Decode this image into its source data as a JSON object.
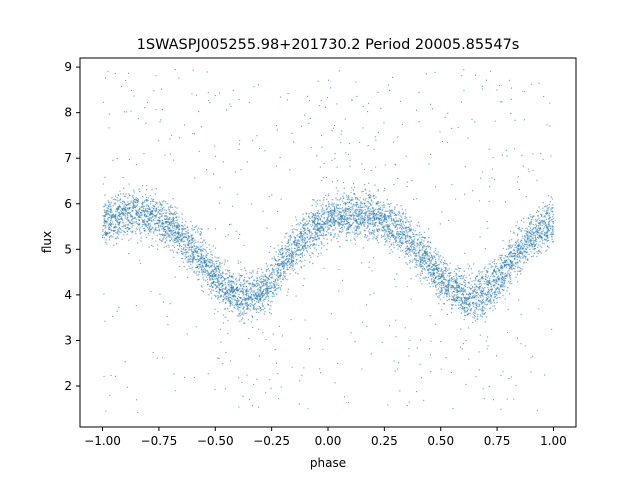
{
  "chart_data": {
    "type": "scatter",
    "title": "1SWASPJ005255.98+201730.2 Period 20005.85547s",
    "xlabel": "phase",
    "ylabel": "flux",
    "xlim": [
      -1.1,
      1.1
    ],
    "ylim": [
      1.1,
      9.2
    ],
    "x_ticks": [
      -1.0,
      -0.75,
      -0.5,
      -0.25,
      0.0,
      0.25,
      0.5,
      0.75,
      1.0
    ],
    "x_tick_labels": [
      "−1.00",
      "−0.75",
      "−0.50",
      "−0.25",
      "0.00",
      "0.25",
      "0.50",
      "0.75",
      "1.00"
    ],
    "y_ticks": [
      2,
      3,
      4,
      5,
      6,
      7,
      8,
      9
    ],
    "y_tick_labels": [
      "2",
      "3",
      "4",
      "5",
      "6",
      "7",
      "8",
      "9"
    ],
    "grid": false,
    "series": [
      {
        "color": "#1f77b4",
        "marker": "point",
        "light_curve": {
          "x": [
            -1.0,
            -0.9,
            -0.8,
            -0.7,
            -0.6,
            -0.5,
            -0.45,
            -0.4,
            -0.35,
            -0.3,
            -0.25,
            -0.2,
            -0.1,
            0.0,
            0.1,
            0.2,
            0.3,
            0.4,
            0.5,
            0.55,
            0.6,
            0.65,
            0.7,
            0.75,
            0.8,
            0.9,
            1.0
          ],
          "y": [
            5.6,
            5.75,
            5.78,
            5.5,
            5.0,
            4.4,
            4.15,
            4.0,
            3.95,
            4.05,
            4.3,
            4.7,
            5.3,
            5.65,
            5.75,
            5.75,
            5.5,
            5.0,
            4.4,
            4.15,
            4.0,
            3.95,
            4.05,
            4.3,
            4.7,
            5.3,
            5.6
          ]
        },
        "scatter_halfwidth_flux": 0.55,
        "outlier_flux_range": [
          1.4,
          8.95
        ]
      }
    ]
  }
}
